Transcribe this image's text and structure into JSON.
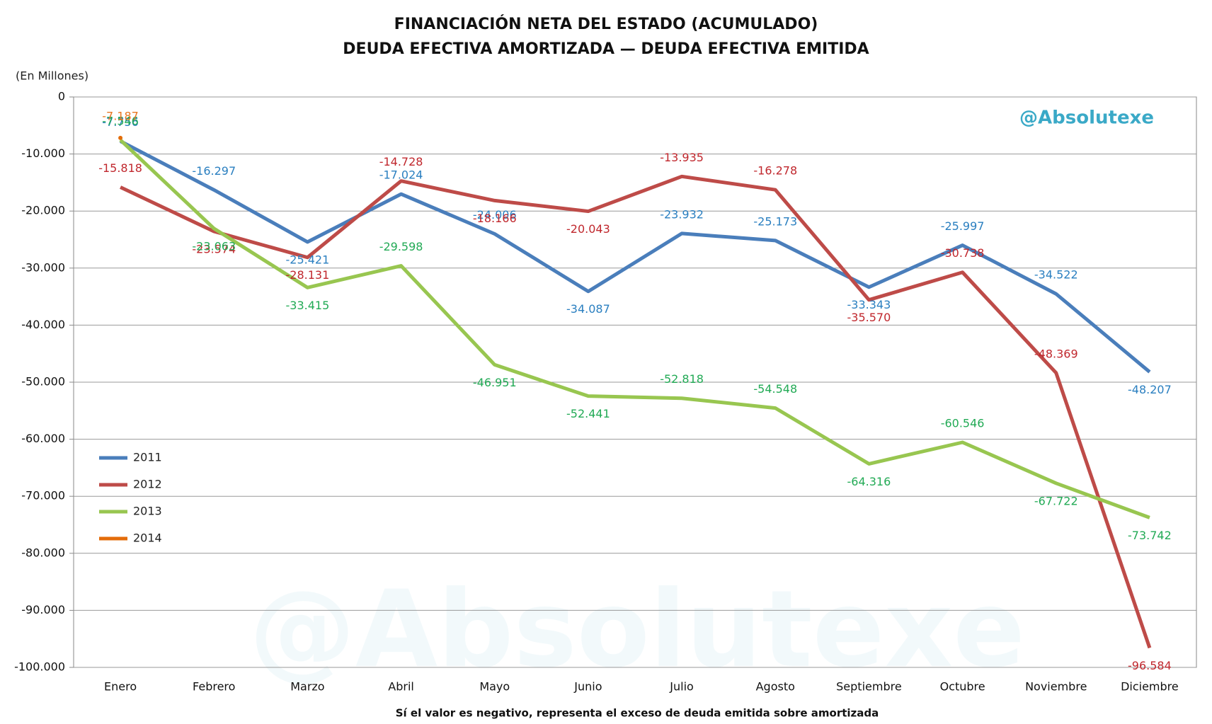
{
  "chart_data": {
    "type": "line",
    "title": [
      "FINANCIACIÓN NETA DEL ESTADO (ACUMULADO)",
      "DEUDA EFECTIVA AMORTIZADA — DEUDA EFECTIVA EMITIDA"
    ],
    "unit_label": "(En Millones)",
    "brand": "@Absolutexe",
    "note": "Sí el valor es negativo, representa el exceso de deuda emitida sobre amortizada",
    "categories": [
      "Enero",
      "Febrero",
      "Marzo",
      "Abril",
      "Mayo",
      "Junio",
      "Julio",
      "Agosto",
      "Septiembre",
      "Octubre",
      "Noviembre",
      "Diciembre"
    ],
    "ylim": [
      -100000,
      0
    ],
    "yticks": [
      0,
      {
        "value": -10000,
        "label": "-10.000"
      },
      {
        "value": -20000,
        "label": "-20.000"
      },
      {
        "value": -30000,
        "label": "-30.000"
      },
      {
        "value": -40000,
        "label": "-40.000"
      },
      {
        "value": -50000,
        "label": "-50.000"
      },
      {
        "value": -60000,
        "label": "-60.000"
      },
      {
        "value": -70000,
        "label": "-70.000"
      },
      {
        "value": -80000,
        "label": "-80.000"
      },
      {
        "value": -90000,
        "label": "-90.000"
      },
      {
        "value": -100000,
        "label": "-100.000"
      }
    ],
    "grid": true,
    "legend": "center-left",
    "series": [
      {
        "name": "2011",
        "color": "#4a7ebb",
        "label_color": "#2a7fc0",
        "values": [
          -7756,
          -16297,
          -25421,
          -17024,
          -24006,
          -34087,
          -23932,
          -25173,
          -33343,
          -25997,
          -34522,
          -48207
        ],
        "value_labels": [
          "-7.756",
          "-16.297",
          "-25.421",
          "-17.024",
          "-24.006",
          "-34.087",
          "-23.932",
          "-25.173",
          "-33.343",
          "-25.997",
          "-34.522",
          "-48.207"
        ]
      },
      {
        "name": "2012",
        "color": "#be4b48",
        "label_color": "#c0272d",
        "values": [
          -15818,
          -23574,
          -28131,
          -14728,
          -18166,
          -20043,
          -13935,
          -16278,
          -35570,
          -30738,
          -48369,
          -96584
        ],
        "value_labels": [
          "-15.818",
          "-23.574",
          "-28.131",
          "-14.728",
          "-18.166",
          "-20.043",
          "-13.935",
          "-16.278",
          "-35.570",
          "-30.738",
          "-48.369",
          "-96.584"
        ]
      },
      {
        "name": "2013",
        "color": "#98c650",
        "label_color": "#22aa55",
        "values": [
          -7546,
          -23063,
          -33415,
          -29598,
          -46951,
          -52441,
          -52818,
          -54548,
          -64316,
          -60546,
          -67722,
          -73742
        ],
        "value_labels": [
          "-7.546",
          "-23.063",
          "-33.415",
          "-29.598",
          "-46.951",
          "-52.441",
          "-52.818",
          "-54.548",
          "-64.316",
          "-60.546",
          "-67.722",
          "-73.742"
        ]
      },
      {
        "name": "2014",
        "color": "#e36c0a",
        "label_color": "#e87722",
        "values": [
          -7187,
          null,
          null,
          null,
          null,
          null,
          null,
          null,
          null,
          null,
          null,
          null
        ],
        "value_labels": [
          "-7.187",
          null,
          null,
          null,
          null,
          null,
          null,
          null,
          null,
          null,
          null,
          null
        ]
      }
    ]
  }
}
